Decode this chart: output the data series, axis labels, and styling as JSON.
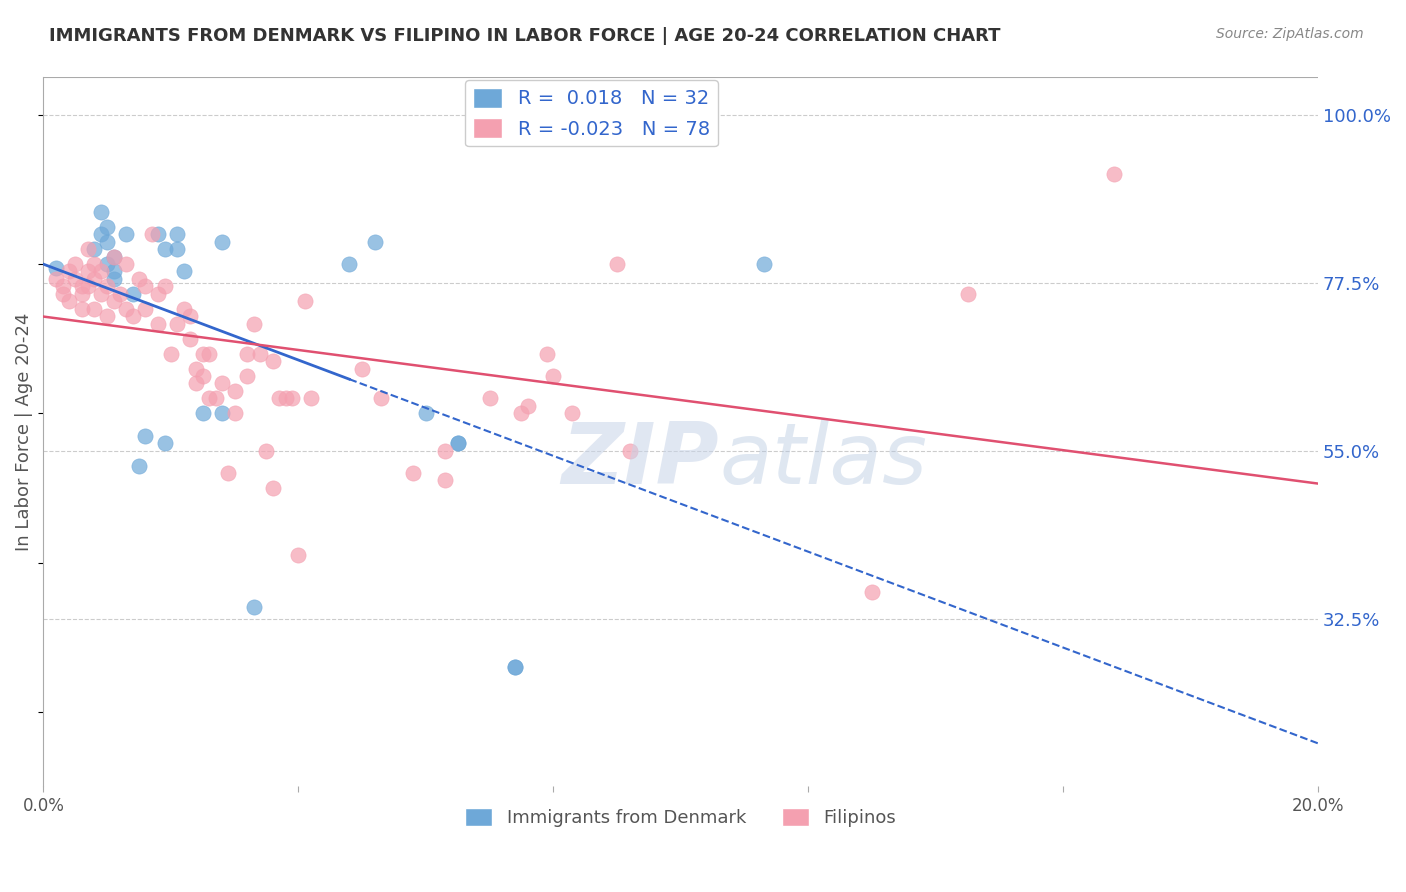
{
  "title": "IMMIGRANTS FROM DENMARK VS FILIPINO IN LABOR FORCE | AGE 20-24 CORRELATION CHART",
  "source": "Source: ZipAtlas.com",
  "ylabel": "In Labor Force | Age 20-24",
  "xlim": [
    0.0,
    0.2
  ],
  "ylim": [
    0.1,
    1.05
  ],
  "yticks": [
    0.325,
    0.55,
    0.775,
    1.0
  ],
  "ytick_labels": [
    "32.5%",
    "55.0%",
    "77.5%",
    "100.0%"
  ],
  "xticks": [
    0.0,
    0.04,
    0.08,
    0.12,
    0.16,
    0.2
  ],
  "xtick_labels": [
    "0.0%",
    "",
    "",
    "",
    "",
    "20.0%"
  ],
  "background_color": "#ffffff",
  "blue_color": "#6ea8d8",
  "pink_color": "#f4a0b0",
  "blue_line_color": "#3366cc",
  "pink_line_color": "#e05070",
  "R_blue": 0.018,
  "N_blue": 32,
  "R_pink": -0.023,
  "N_pink": 78,
  "blue_scatter_x": [
    0.002,
    0.008,
    0.009,
    0.009,
    0.01,
    0.01,
    0.01,
    0.011,
    0.011,
    0.011,
    0.013,
    0.014,
    0.015,
    0.016,
    0.018,
    0.019,
    0.019,
    0.021,
    0.021,
    0.022,
    0.025,
    0.028,
    0.028,
    0.033,
    0.048,
    0.052,
    0.06,
    0.065,
    0.065,
    0.074,
    0.074,
    0.113
  ],
  "blue_scatter_y": [
    0.795,
    0.82,
    0.84,
    0.87,
    0.8,
    0.83,
    0.85,
    0.78,
    0.79,
    0.81,
    0.84,
    0.76,
    0.53,
    0.57,
    0.84,
    0.56,
    0.82,
    0.84,
    0.82,
    0.79,
    0.6,
    0.6,
    0.83,
    0.34,
    0.8,
    0.83,
    0.6,
    0.56,
    0.56,
    0.26,
    0.26,
    0.8
  ],
  "pink_scatter_x": [
    0.002,
    0.003,
    0.003,
    0.004,
    0.004,
    0.005,
    0.005,
    0.006,
    0.006,
    0.006,
    0.007,
    0.007,
    0.007,
    0.008,
    0.008,
    0.008,
    0.009,
    0.009,
    0.01,
    0.01,
    0.011,
    0.011,
    0.012,
    0.013,
    0.013,
    0.014,
    0.015,
    0.016,
    0.016,
    0.017,
    0.018,
    0.018,
    0.019,
    0.02,
    0.021,
    0.022,
    0.023,
    0.023,
    0.024,
    0.024,
    0.025,
    0.025,
    0.026,
    0.026,
    0.027,
    0.028,
    0.029,
    0.03,
    0.03,
    0.032,
    0.032,
    0.033,
    0.034,
    0.035,
    0.036,
    0.036,
    0.037,
    0.038,
    0.039,
    0.04,
    0.041,
    0.042,
    0.05,
    0.053,
    0.058,
    0.063,
    0.063,
    0.07,
    0.075,
    0.076,
    0.079,
    0.08,
    0.083,
    0.09,
    0.092,
    0.13,
    0.145,
    0.168
  ],
  "pink_scatter_y": [
    0.78,
    0.77,
    0.76,
    0.75,
    0.79,
    0.78,
    0.8,
    0.77,
    0.76,
    0.74,
    0.82,
    0.79,
    0.77,
    0.74,
    0.78,
    0.8,
    0.76,
    0.79,
    0.73,
    0.77,
    0.81,
    0.75,
    0.76,
    0.8,
    0.74,
    0.73,
    0.78,
    0.77,
    0.74,
    0.84,
    0.76,
    0.72,
    0.77,
    0.68,
    0.72,
    0.74,
    0.7,
    0.73,
    0.64,
    0.66,
    0.68,
    0.65,
    0.62,
    0.68,
    0.62,
    0.64,
    0.52,
    0.63,
    0.6,
    0.68,
    0.65,
    0.72,
    0.68,
    0.55,
    0.5,
    0.67,
    0.62,
    0.62,
    0.62,
    0.41,
    0.75,
    0.62,
    0.66,
    0.62,
    0.52,
    0.55,
    0.51,
    0.62,
    0.6,
    0.61,
    0.68,
    0.65,
    0.6,
    0.8,
    0.55,
    0.36,
    0.76,
    0.92
  ]
}
